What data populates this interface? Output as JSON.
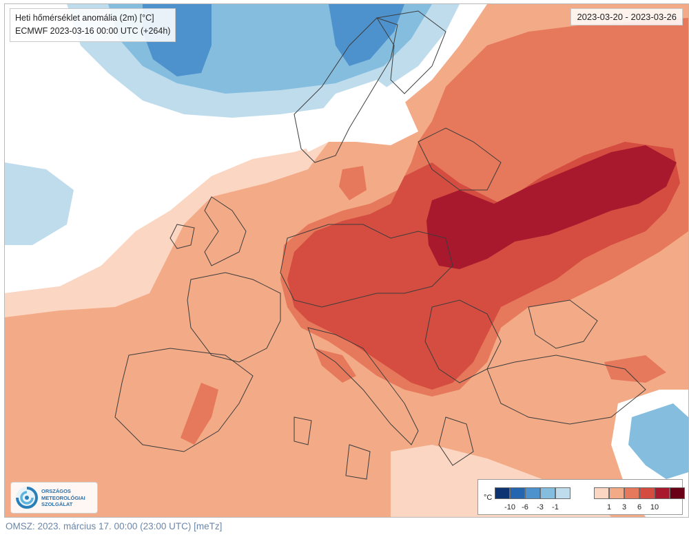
{
  "map": {
    "title": "Heti hőmérséklet anomália (2m) [°C]",
    "model_run": "ECMWF 2023-03-16 00:00 UTC (+264h)",
    "period": "2023-03-20 - 2023-03-26",
    "region": "Europe"
  },
  "logo": {
    "line1": "ORSZÁGOS",
    "line2": "METEOROLÓGIAI",
    "line3": "SZOLGÁLAT"
  },
  "legend": {
    "unit": "°C",
    "cold_colors": [
      "#0d3373",
      "#2565b0",
      "#4d92cc",
      "#85bddf",
      "#bedcec"
    ],
    "warm_colors": [
      "#fbd6c2",
      "#f3aa87",
      "#e6785b",
      "#d44d40",
      "#a8192e",
      "#6a0015"
    ],
    "cold_ticks": [
      "-10",
      "-6",
      "-3",
      "-1"
    ],
    "warm_ticks": [
      "1",
      "3",
      "6",
      "10"
    ]
  },
  "colors": {
    "neutral": "#ffffff",
    "border_lines": "#3c3c3c"
  },
  "footer": {
    "text": "OMSZ: 2023. március 17. 00:00 (23:00 UTC)  [meTz]"
  }
}
